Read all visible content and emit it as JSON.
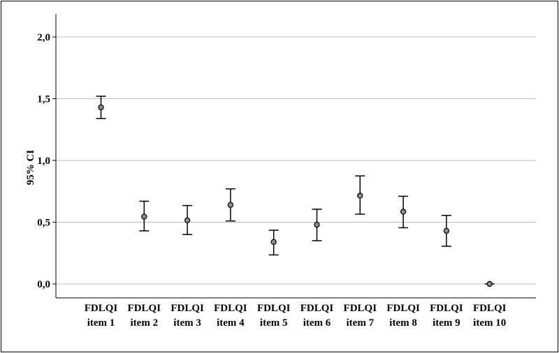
{
  "chart_data": {
    "type": "errorbar",
    "title": "",
    "xlabel": "",
    "ylabel": "95% CI",
    "ylim": [
      -0.12,
      2.15
    ],
    "yticks": [
      {
        "value": 0.0,
        "label": "0,0"
      },
      {
        "value": 0.5,
        "label": "0,5"
      },
      {
        "value": 1.0,
        "label": "1,0"
      },
      {
        "value": 1.5,
        "label": "1,5"
      },
      {
        "value": 2.0,
        "label": "2,0"
      }
    ],
    "grid": true,
    "categories": [
      {
        "line1": "FDLQI",
        "line2": "item 1"
      },
      {
        "line1": "FDLQI",
        "line2": "item 2"
      },
      {
        "line1": "FDLQI",
        "line2": "item 3"
      },
      {
        "line1": "FDLQI",
        "line2": "item 4"
      },
      {
        "line1": "FDLQI",
        "line2": "item 5"
      },
      {
        "line1": "FDLQI",
        "line2": "item 6"
      },
      {
        "line1": "FDLQI",
        "line2": "item 7"
      },
      {
        "line1": "FDLQI",
        "line2": "item 8"
      },
      {
        "line1": "FDLQI",
        "line2": "item 9"
      },
      {
        "line1": "FDLQI",
        "line2": "item 10"
      }
    ],
    "series": [
      {
        "mean": [
          1.43,
          0.545,
          0.515,
          0.64,
          0.34,
          0.48,
          0.715,
          0.585,
          0.43,
          0.0
        ],
        "lower": [
          1.34,
          0.43,
          0.4,
          0.51,
          0.235,
          0.35,
          0.565,
          0.455,
          0.305,
          0.0
        ],
        "upper": [
          1.52,
          0.67,
          0.635,
          0.77,
          0.435,
          0.605,
          0.875,
          0.71,
          0.555,
          0.0
        ]
      }
    ],
    "colors": {
      "marker_fill": "#8c8c8c",
      "marker_stroke": "#000000",
      "grid": "#bdbdbd",
      "axis": "#000000"
    }
  }
}
